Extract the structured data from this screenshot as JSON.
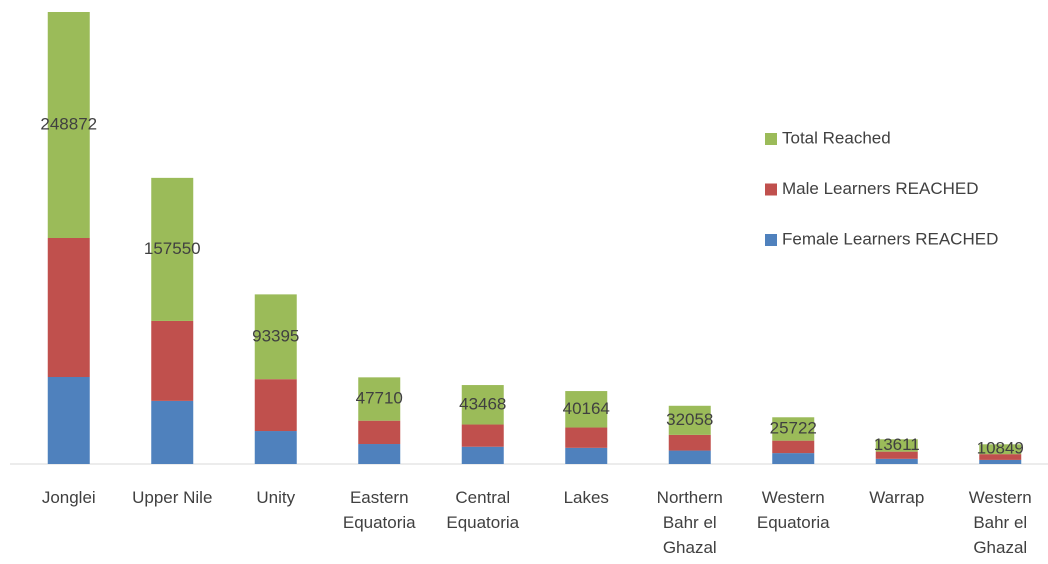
{
  "chart_data": {
    "type": "stacked_bar",
    "categories": [
      "Jonglei",
      "Upper Nile",
      "Unity",
      "Eastern Equatoria",
      "Central Equatoria",
      "Lakes",
      "Northern Bahr el Ghazal",
      "Western Equatoria",
      "Warrap",
      "Western Bahr el Ghazal"
    ],
    "series": [
      {
        "name": "Female Learners REACHED",
        "color": "#4f81bd",
        "values": [
          95800,
          69500,
          36300,
          22000,
          19000,
          17800,
          14800,
          12000,
          5700,
          4500
        ]
      },
      {
        "name": "Male Learners REACHED",
        "color": "#c0504d",
        "values": [
          153072,
          88050,
          57095,
          25710,
          24468,
          22364,
          17258,
          13722,
          7911,
          6349
        ]
      },
      {
        "name": "Total Reached",
        "color": "#9bbb59",
        "values": [
          248872,
          157550,
          93395,
          47710,
          43468,
          40164,
          32058,
          25722,
          13611,
          10849
        ]
      }
    ],
    "legend": "right"
  }
}
